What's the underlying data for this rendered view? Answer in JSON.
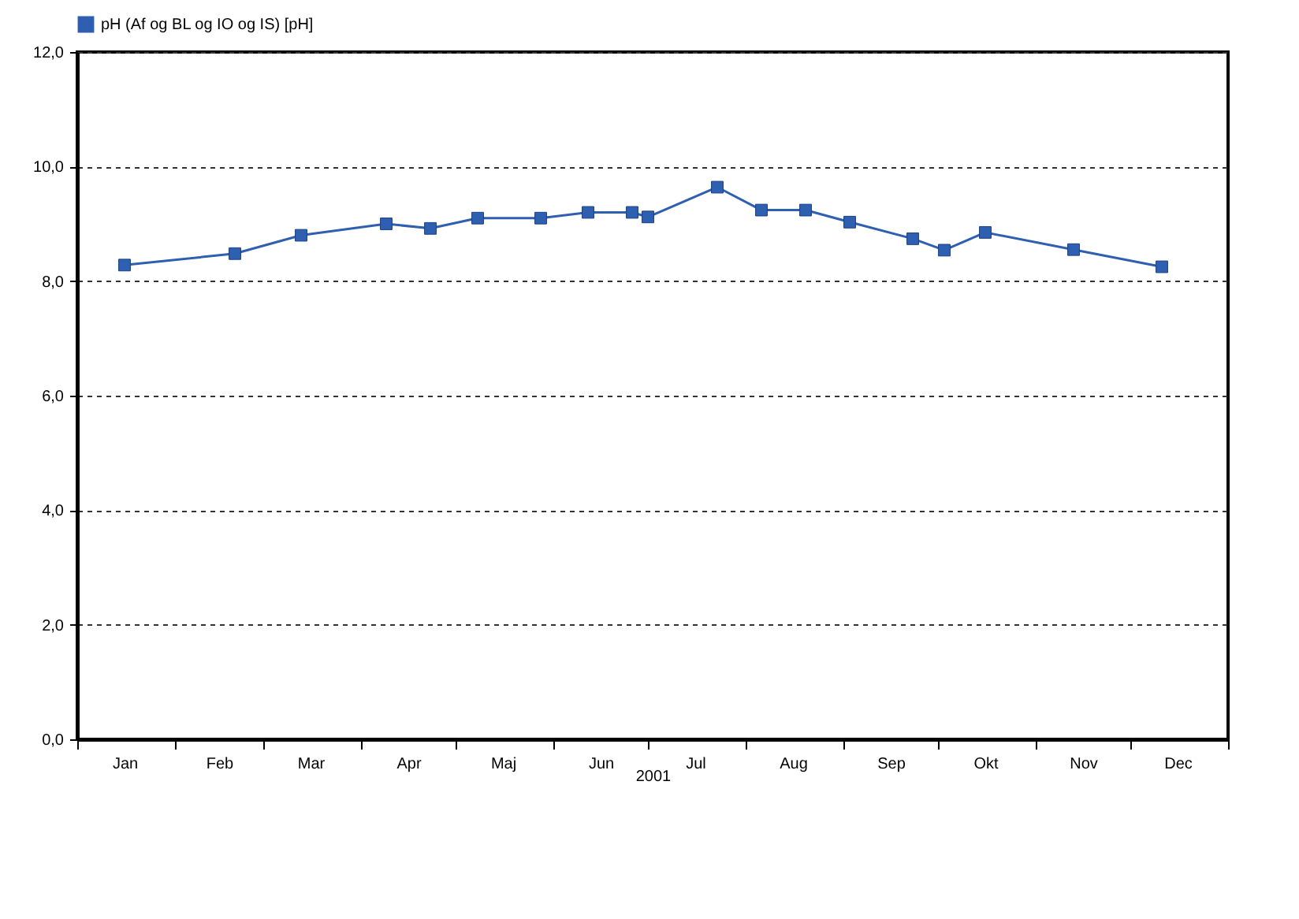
{
  "chart_data": {
    "type": "line",
    "xlabel": "2001",
    "x": [
      "2001-01-16",
      "2001-02-20",
      "2001-03-13",
      "2001-04-09",
      "2001-04-23",
      "2001-05-08",
      "2001-05-28",
      "2001-06-12",
      "2001-06-26",
      "2001-07-01",
      "2001-07-23",
      "2001-08-06",
      "2001-08-20",
      "2001-09-03",
      "2001-09-23",
      "2001-10-03",
      "2001-10-16",
      "2001-11-13",
      "2001-12-11"
    ],
    "series": [
      {
        "name": "pH (Af og BL og IO og IS) [pH]",
        "color": "#2e5fb0",
        "values": [
          8.28,
          8.48,
          8.8,
          9.0,
          8.92,
          9.1,
          9.1,
          9.2,
          9.2,
          9.12,
          9.64,
          9.24,
          9.24,
          9.03,
          8.74,
          8.54,
          8.85,
          8.55,
          8.25
        ]
      }
    ],
    "xlim": [
      "2001-01-01",
      "2002-01-01"
    ],
    "xticks": [
      {
        "value": "2001-01-01",
        "label": null
      },
      {
        "value": "2001-01-16",
        "label": "Jan"
      },
      {
        "value": "2001-02-01",
        "label": null
      },
      {
        "value": "2001-02-15",
        "label": "Feb"
      },
      {
        "value": "2001-03-01",
        "label": null
      },
      {
        "value": "2001-03-16",
        "label": "Mar"
      },
      {
        "value": "2001-04-01",
        "label": null
      },
      {
        "value": "2001-04-16",
        "label": "Apr"
      },
      {
        "value": "2001-05-01",
        "label": null
      },
      {
        "value": "2001-05-16",
        "label": "Maj"
      },
      {
        "value": "2001-06-01",
        "label": null
      },
      {
        "value": "2001-06-16",
        "label": "Jun"
      },
      {
        "value": "2001-07-01",
        "label": null
      },
      {
        "value": "2001-07-16",
        "label": "Jul"
      },
      {
        "value": "2001-08-01",
        "label": null
      },
      {
        "value": "2001-08-16",
        "label": "Aug"
      },
      {
        "value": "2001-09-01",
        "label": null
      },
      {
        "value": "2001-09-16",
        "label": "Sep"
      },
      {
        "value": "2001-10-01",
        "label": null
      },
      {
        "value": "2001-10-16",
        "label": "Okt"
      },
      {
        "value": "2001-11-01",
        "label": null
      },
      {
        "value": "2001-11-16",
        "label": "Nov"
      },
      {
        "value": "2001-12-01",
        "label": null
      },
      {
        "value": "2001-12-16",
        "label": "Dec"
      },
      {
        "value": "2002-01-01",
        "label": null
      }
    ],
    "ylim": [
      0,
      12
    ],
    "yticks": [
      {
        "value": 0,
        "label": "0,0"
      },
      {
        "value": 2,
        "label": "2,0"
      },
      {
        "value": 4,
        "label": "4,0"
      },
      {
        "value": 6,
        "label": "6,0"
      },
      {
        "value": 8,
        "label": "8,0"
      },
      {
        "value": 10,
        "label": "10,0"
      },
      {
        "value": 12,
        "label": "12,0"
      }
    ],
    "grid": "y",
    "legend": "top left",
    "marker": "square",
    "line_style": "solid"
  }
}
